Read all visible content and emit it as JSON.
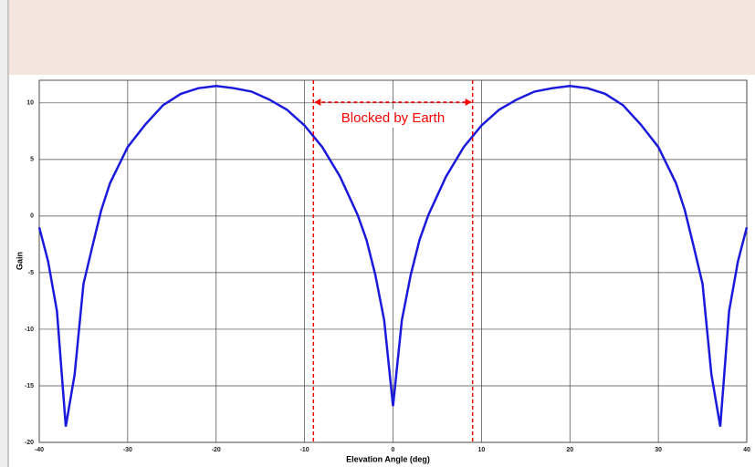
{
  "chart_data": {
    "type": "line",
    "x_label": "Elevation Angle (deg)",
    "y_label": "Gain",
    "annotation": "Blocked by Earth",
    "blocked_region": [
      -9,
      9
    ],
    "annotation_color": "#ff0000",
    "x": [
      -40,
      -39,
      -38,
      -37,
      -36,
      -35,
      -34,
      -33,
      -32,
      -30,
      -28,
      -26,
      -24,
      -22,
      -20,
      -18,
      -16,
      -14,
      -12,
      -10,
      -8,
      -6,
      -4,
      -3,
      -2,
      -1,
      0,
      1,
      2,
      3,
      4,
      6,
      8,
      10,
      12,
      14,
      16,
      18,
      20,
      22,
      24,
      26,
      28,
      30,
      32,
      33,
      34,
      35,
      36,
      37,
      38,
      39,
      40
    ],
    "series": [
      {
        "name": "Gain",
        "color": "#1a1adc",
        "values": [
          -1,
          -4,
          -8.4,
          -18.6,
          -14,
          -6,
          -2.7,
          0.5,
          2.9,
          6.1,
          8.1,
          9.8,
          10.8,
          11.3,
          11.5,
          11.3,
          11,
          10.3,
          9.4,
          8,
          6.1,
          3.5,
          0.1,
          -2.1,
          -5.2,
          -9.2,
          -16.8,
          -9.2,
          -5.2,
          -2.1,
          0.1,
          3.5,
          6.1,
          8,
          9.4,
          10.3,
          11,
          11.3,
          11.5,
          11.3,
          10.8,
          9.8,
          8.1,
          6.1,
          2.9,
          0.5,
          -2.7,
          -6,
          -14,
          -18.6,
          -8.4,
          -4,
          -1
        ]
      }
    ],
    "xlim": [
      -40,
      40
    ],
    "xticks": [
      -40,
      -30,
      -20,
      -10,
      0,
      10,
      20,
      30,
      40
    ],
    "ylim": [
      -20,
      12
    ],
    "yticks": [
      -20,
      -15,
      -10,
      -5,
      0,
      5,
      10
    ],
    "grid": true
  }
}
